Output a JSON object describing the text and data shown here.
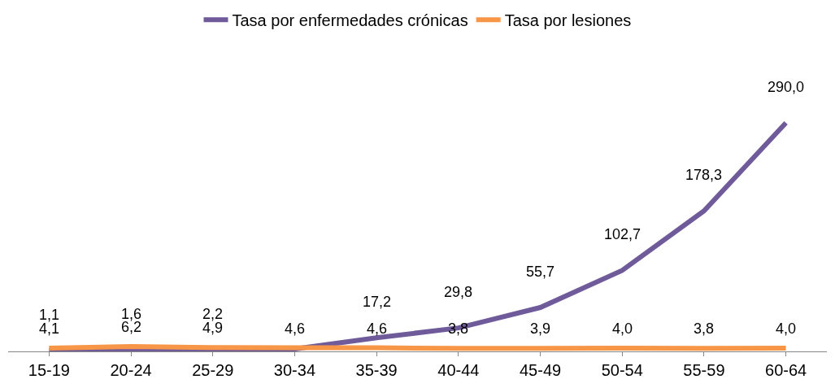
{
  "chart_data": {
    "type": "line",
    "categories": [
      "15-19",
      "20-24",
      "25-29",
      "30-34",
      "35-39",
      "40-44",
      "45-49",
      "50-54",
      "55-59",
      "60-64"
    ],
    "series": [
      {
        "name": "Tasa por enfermedades crónicas",
        "color": "#6f5a9a",
        "values": [
          1.1,
          1.6,
          2.2,
          3.0,
          17.2,
          29.8,
          55.7,
          102.7,
          178.3,
          290.0
        ],
        "value_labels": [
          "1,1",
          "1,6",
          "2,2",
          null,
          "17,2",
          "29,8",
          "55,7",
          "102,7",
          "178,3",
          "290,0"
        ]
      },
      {
        "name": "Tasa por lesiones",
        "color": "#f79646",
        "values": [
          4.1,
          6.2,
          4.9,
          4.6,
          4.6,
          3.8,
          3.9,
          4.0,
          3.8,
          4.0
        ],
        "value_labels": [
          "4,1",
          "6,2",
          "4,9",
          "4,6",
          "4,6",
          "3,8",
          "3,9",
          "4,0",
          "3,8",
          "4,0"
        ]
      }
    ],
    "legend": "top",
    "marker": "none",
    "line_style": "solid"
  }
}
